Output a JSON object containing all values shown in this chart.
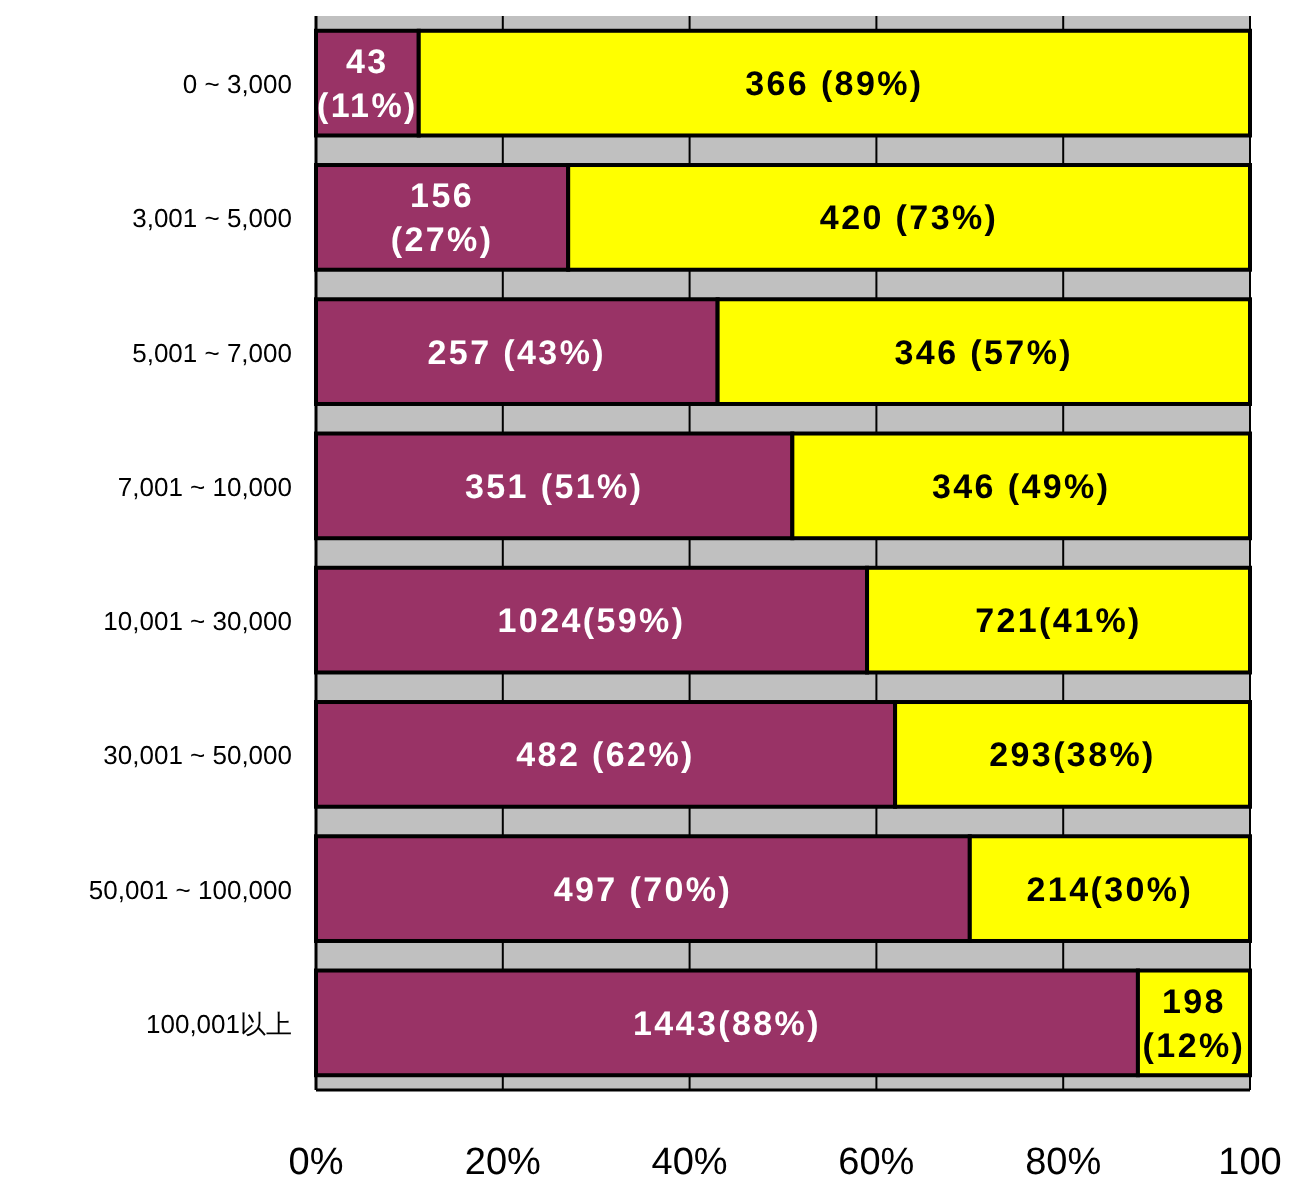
{
  "chart_data": {
    "type": "bar",
    "orientation": "horizontal",
    "stacked": true,
    "categories": [
      "0 ~ 3,000",
      "3,001 ~ 5,000",
      "5,001 ~ 7,000",
      "7,001 ~ 10,000",
      "10,001 ~ 30,000",
      "30,001 ~ 50,000",
      "50,001 ~ 100,000",
      "100,001以上"
    ],
    "series": [
      {
        "color": "#993366",
        "values": [
          11,
          27,
          43,
          51,
          59,
          62,
          70,
          88
        ],
        "value_labels": [
          "43\n(11%)",
          "156\n(27%)",
          "257 (43%)",
          "351 (51%)",
          "1024(59%)",
          "482 (62%)",
          "497 (70%)",
          "1443(88%)"
        ]
      },
      {
        "color": "#ffff00",
        "values": [
          89,
          73,
          57,
          49,
          41,
          38,
          30,
          12
        ],
        "value_labels": [
          "366 (89%)",
          "420 (73%)",
          "346 (57%)",
          "346 (49%)",
          "721(41%)",
          "293(38%)",
          "214(30%)",
          "198\n(12%)"
        ]
      }
    ],
    "xlim": [
      0,
      100
    ],
    "xticks": [
      {
        "value": 0,
        "label": "0%"
      },
      {
        "value": 20,
        "label": "20%"
      },
      {
        "value": 40,
        "label": "40%"
      },
      {
        "value": 60,
        "label": "60%"
      },
      {
        "value": 80,
        "label": "80%"
      },
      {
        "value": 100,
        "label": "100"
      }
    ],
    "grid": "x"
  }
}
